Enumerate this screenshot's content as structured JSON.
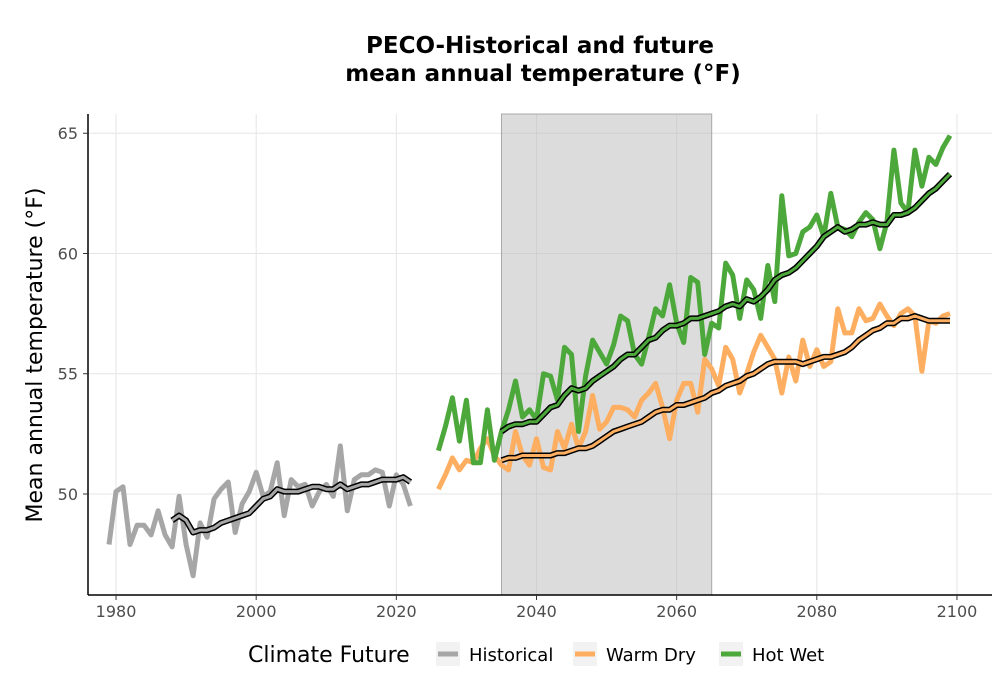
{
  "chart_data": {
    "type": "line",
    "title_line1": "PECO-Historical and future",
    "title_line2": "mean annual temperature (°F)",
    "xlabel": "",
    "ylabel": "Mean annual temperature (°F)",
    "xlim": [
      1976,
      2105
    ],
    "ylim": [
      45.8,
      65.8
    ],
    "x_ticks": [
      1980,
      2000,
      2020,
      2040,
      2060,
      2080,
      2100
    ],
    "y_ticks": [
      50,
      55,
      60,
      65
    ],
    "grid": true,
    "shaded_period": [
      2035,
      2065
    ],
    "legend_position": "bottom",
    "legend_title": "Climate Future",
    "series": [
      {
        "name": "Historical",
        "color": "#a6a6a6",
        "x": [
          1979,
          1980,
          1981,
          1982,
          1983,
          1984,
          1985,
          1986,
          1987,
          1988,
          1989,
          1990,
          1991,
          1992,
          1993,
          1994,
          1995,
          1996,
          1997,
          1998,
          1999,
          2000,
          2001,
          2002,
          2003,
          2004,
          2005,
          2006,
          2007,
          2008,
          2009,
          2010,
          2011,
          2012,
          2013,
          2014,
          2015,
          2016,
          2017,
          2018,
          2019,
          2020,
          2021,
          2022
        ],
        "values": [
          47.9,
          50.1,
          50.3,
          47.9,
          48.7,
          48.7,
          48.3,
          49.3,
          48.3,
          47.8,
          49.9,
          47.9,
          46.6,
          48.8,
          48.2,
          49.8,
          50.2,
          50.5,
          48.4,
          49.6,
          50.1,
          50.9,
          49.9,
          50.1,
          51.3,
          49.1,
          50.6,
          50.3,
          50.4,
          49.5,
          50.1,
          50.4,
          49.9,
          52.0,
          49.3,
          50.6,
          50.8,
          50.8,
          51.0,
          50.9,
          49.5,
          50.8,
          50.4,
          49.5
        ]
      },
      {
        "name": "Warm Dry",
        "color": "#fdae61",
        "x": [
          2026,
          2027,
          2028,
          2029,
          2030,
          2031,
          2032,
          2033,
          2034,
          2035,
          2036,
          2037,
          2038,
          2039,
          2040,
          2041,
          2042,
          2043,
          2044,
          2045,
          2046,
          2047,
          2048,
          2049,
          2050,
          2051,
          2052,
          2053,
          2054,
          2055,
          2056,
          2057,
          2058,
          2059,
          2060,
          2061,
          2062,
          2063,
          2064,
          2065,
          2066,
          2067,
          2068,
          2069,
          2070,
          2071,
          2072,
          2073,
          2074,
          2075,
          2076,
          2077,
          2078,
          2079,
          2080,
          2081,
          2082,
          2083,
          2084,
          2085,
          2086,
          2087,
          2088,
          2089,
          2090,
          2091,
          2092,
          2093,
          2094,
          2095,
          2096,
          2097,
          2098,
          2099
        ],
        "values": [
          50.2,
          50.8,
          51.5,
          51.0,
          51.4,
          51.3,
          51.9,
          52.3,
          51.6,
          51.2,
          51.0,
          52.6,
          51.6,
          51.2,
          52.3,
          51.1,
          51.0,
          52.6,
          51.9,
          52.9,
          51.9,
          52.6,
          54.1,
          52.7,
          53.0,
          53.6,
          53.6,
          53.5,
          53.2,
          53.9,
          54.2,
          54.6,
          53.6,
          52.3,
          53.9,
          54.6,
          54.6,
          53.4,
          55.6,
          55.2,
          54.5,
          56.1,
          55.6,
          54.2,
          55.0,
          55.9,
          56.6,
          56.1,
          55.6,
          54.2,
          55.7,
          54.7,
          56.4,
          55.3,
          56.0,
          55.3,
          55.5,
          57.7,
          56.7,
          56.7,
          57.7,
          57.2,
          57.3,
          57.9,
          57.4,
          57.0,
          57.5,
          57.7,
          57.4,
          55.1,
          57.2,
          57.1,
          57.4,
          57.5
        ]
      },
      {
        "name": "Hot Wet",
        "color": "#4da83b",
        "x": [
          2026,
          2027,
          2028,
          2029,
          2030,
          2031,
          2032,
          2033,
          2034,
          2035,
          2036,
          2037,
          2038,
          2039,
          2040,
          2041,
          2042,
          2043,
          2044,
          2045,
          2046,
          2047,
          2048,
          2049,
          2050,
          2051,
          2052,
          2053,
          2054,
          2055,
          2056,
          2057,
          2058,
          2059,
          2060,
          2061,
          2062,
          2063,
          2064,
          2065,
          2066,
          2067,
          2068,
          2069,
          2070,
          2071,
          2072,
          2073,
          2074,
          2075,
          2076,
          2077,
          2078,
          2079,
          2080,
          2081,
          2082,
          2083,
          2084,
          2085,
          2086,
          2087,
          2088,
          2089,
          2090,
          2091,
          2092,
          2093,
          2094,
          2095,
          2096,
          2097,
          2098,
          2099
        ],
        "values": [
          51.8,
          52.8,
          54.0,
          52.2,
          53.9,
          51.3,
          51.3,
          53.5,
          51.4,
          52.6,
          53.5,
          54.7,
          53.2,
          53.5,
          53.1,
          55.0,
          54.9,
          53.9,
          56.1,
          55.8,
          52.6,
          54.9,
          56.4,
          55.9,
          55.4,
          56.2,
          57.4,
          57.2,
          55.8,
          55.4,
          56.5,
          57.7,
          57.4,
          58.7,
          57.1,
          56.3,
          59.0,
          58.8,
          55.8,
          57.1,
          56.9,
          59.6,
          59.1,
          57.3,
          58.9,
          58.5,
          57.3,
          59.5,
          58.0,
          62.4,
          59.9,
          60.0,
          60.9,
          61.1,
          61.6,
          60.7,
          62.5,
          61.1,
          61.0,
          60.7,
          61.3,
          61.7,
          61.4,
          60.2,
          61.3,
          64.3,
          62.1,
          61.7,
          64.3,
          62.8,
          64.0,
          63.7,
          64.4,
          64.9
        ]
      }
    ],
    "moving_average": [
      {
        "name": "Historical",
        "x": [
          1988,
          1989,
          1990,
          1991,
          1992,
          1993,
          1994,
          1995,
          1996,
          1997,
          1998,
          1999,
          2000,
          2001,
          2002,
          2003,
          2004,
          2005,
          2006,
          2007,
          2008,
          2009,
          2010,
          2011,
          2012,
          2013,
          2014,
          2015,
          2016,
          2017,
          2018,
          2019,
          2020,
          2021,
          2022
        ],
        "values": [
          48.9,
          49.1,
          48.9,
          48.4,
          48.5,
          48.5,
          48.6,
          48.8,
          48.9,
          49.0,
          49.1,
          49.2,
          49.5,
          49.8,
          49.9,
          50.2,
          50.1,
          50.1,
          50.1,
          50.2,
          50.3,
          50.3,
          50.2,
          50.2,
          50.4,
          50.2,
          50.3,
          50.4,
          50.4,
          50.5,
          50.6,
          50.6,
          50.6,
          50.7,
          50.5
        ]
      },
      {
        "name": "Warm Dry",
        "x": [
          2035,
          2036,
          2037,
          2038,
          2039,
          2040,
          2041,
          2042,
          2043,
          2044,
          2045,
          2046,
          2047,
          2048,
          2049,
          2050,
          2051,
          2052,
          2053,
          2054,
          2055,
          2056,
          2057,
          2058,
          2059,
          2060,
          2061,
          2062,
          2063,
          2064,
          2065,
          2066,
          2067,
          2068,
          2069,
          2070,
          2071,
          2072,
          2073,
          2074,
          2075,
          2076,
          2077,
          2078,
          2079,
          2080,
          2081,
          2082,
          2083,
          2084,
          2085,
          2086,
          2087,
          2088,
          2089,
          2090,
          2091,
          2092,
          2093,
          2094,
          2095,
          2096,
          2097,
          2098,
          2099
        ],
        "values": [
          51.4,
          51.5,
          51.5,
          51.6,
          51.6,
          51.6,
          51.6,
          51.6,
          51.7,
          51.7,
          51.8,
          51.9,
          51.9,
          52.0,
          52.2,
          52.4,
          52.6,
          52.7,
          52.8,
          52.9,
          53.0,
          53.2,
          53.4,
          53.5,
          53.5,
          53.7,
          53.7,
          53.8,
          53.9,
          54.0,
          54.2,
          54.3,
          54.5,
          54.6,
          54.7,
          54.9,
          55.0,
          55.2,
          55.4,
          55.5,
          55.5,
          55.5,
          55.5,
          55.4,
          55.5,
          55.6,
          55.7,
          55.7,
          55.8,
          55.9,
          56.1,
          56.4,
          56.6,
          56.8,
          56.9,
          57.1,
          57.1,
          57.3,
          57.3,
          57.4,
          57.3,
          57.2,
          57.2,
          57.2,
          57.2
        ]
      },
      {
        "name": "Hot Wet",
        "x": [
          2035,
          2036,
          2037,
          2038,
          2039,
          2040,
          2041,
          2042,
          2043,
          2044,
          2045,
          2046,
          2047,
          2048,
          2049,
          2050,
          2051,
          2052,
          2053,
          2054,
          2055,
          2056,
          2057,
          2058,
          2059,
          2060,
          2061,
          2062,
          2063,
          2064,
          2065,
          2066,
          2067,
          2068,
          2069,
          2070,
          2071,
          2072,
          2073,
          2074,
          2075,
          2076,
          2077,
          2078,
          2079,
          2080,
          2081,
          2082,
          2083,
          2084,
          2085,
          2086,
          2087,
          2088,
          2089,
          2090,
          2091,
          2092,
          2093,
          2094,
          2095,
          2096,
          2097,
          2098,
          2099
        ],
        "values": [
          52.6,
          52.8,
          52.9,
          52.9,
          53.0,
          53.0,
          53.3,
          53.6,
          53.7,
          54.1,
          54.4,
          54.3,
          54.4,
          54.7,
          54.9,
          55.1,
          55.3,
          55.6,
          55.8,
          55.8,
          56.1,
          56.4,
          56.5,
          56.8,
          57.0,
          57.0,
          57.1,
          57.3,
          57.3,
          57.4,
          57.5,
          57.6,
          57.8,
          57.9,
          57.8,
          58.1,
          58.0,
          58.2,
          58.5,
          58.9,
          59.1,
          59.2,
          59.4,
          59.7,
          60.0,
          60.3,
          60.7,
          60.9,
          61.1,
          60.9,
          61.0,
          61.2,
          61.2,
          61.3,
          61.2,
          61.2,
          61.6,
          61.6,
          61.7,
          61.9,
          62.2,
          62.5,
          62.7,
          63.0,
          63.3
        ]
      }
    ]
  }
}
